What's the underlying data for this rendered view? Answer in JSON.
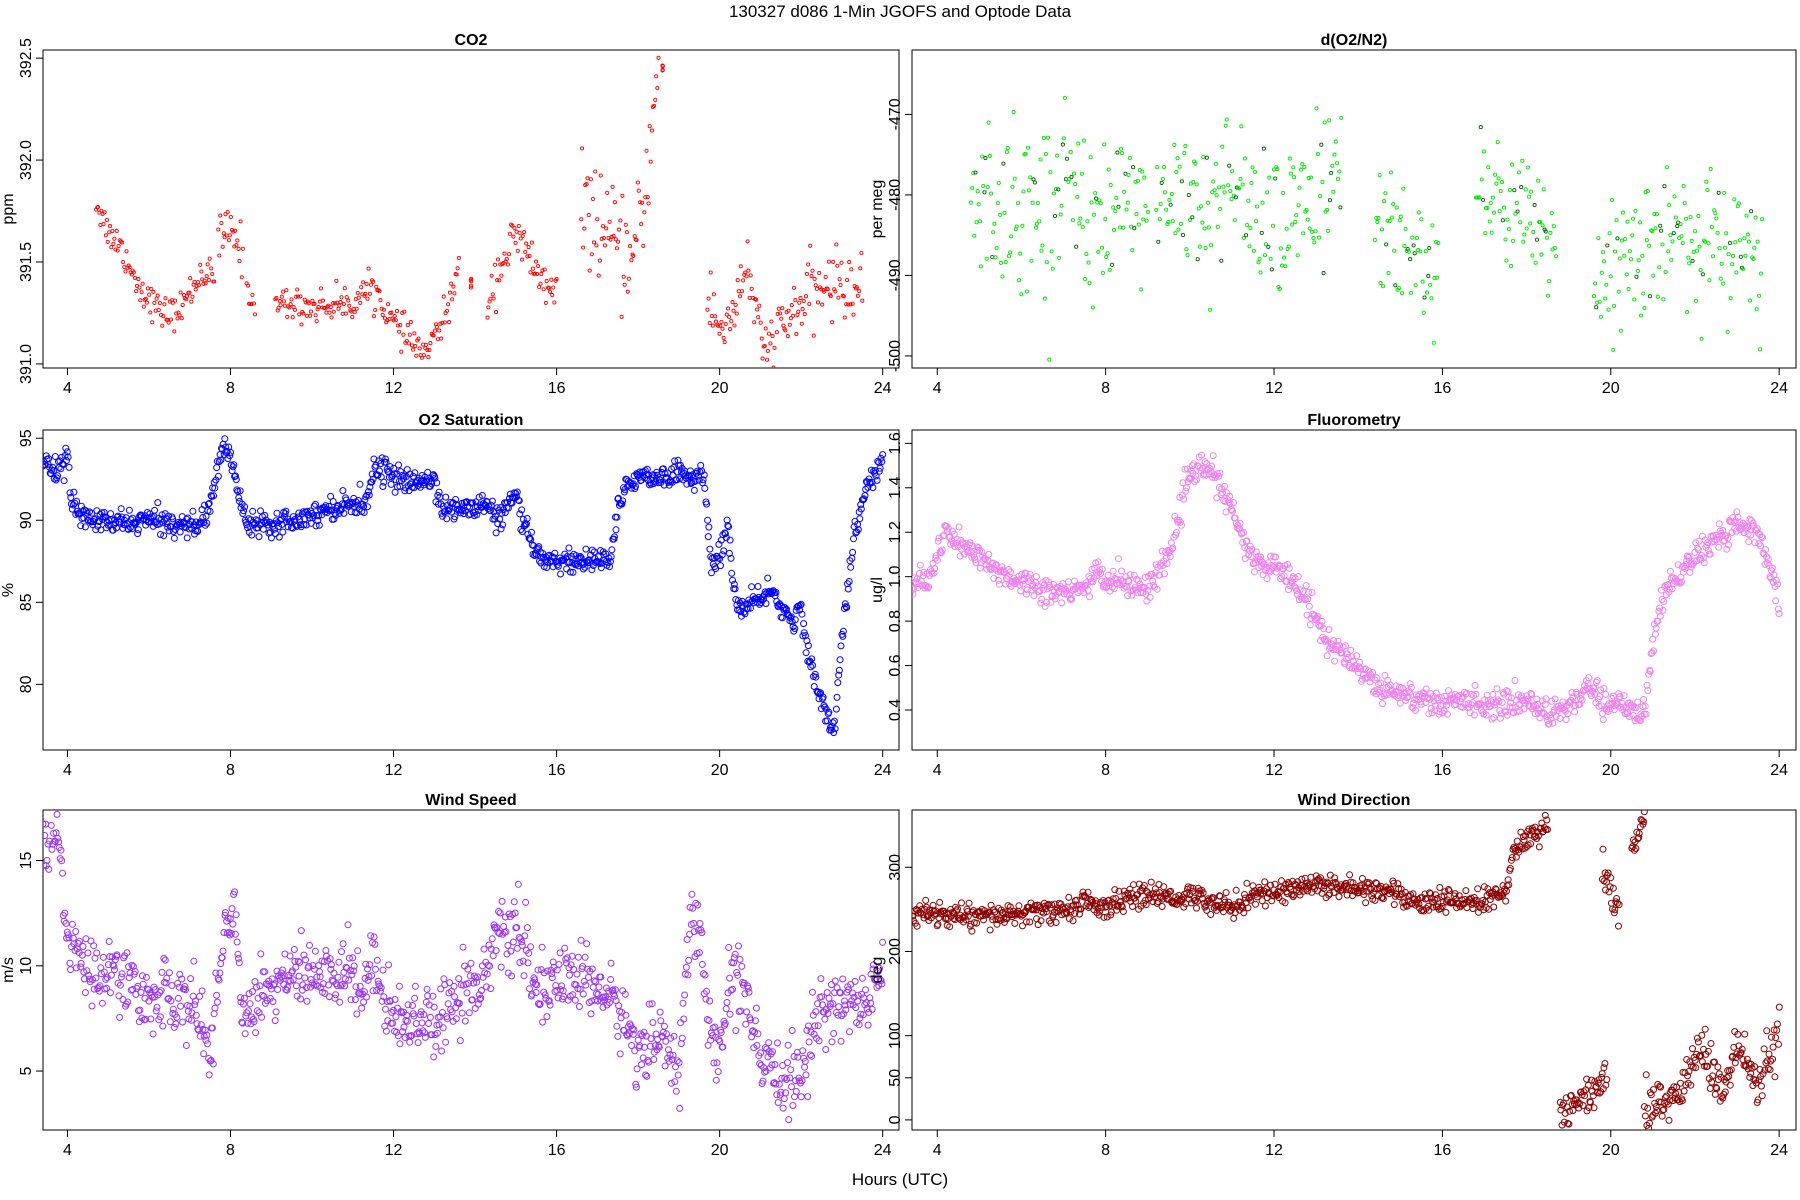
{
  "page": {
    "title": "130327   d086   1-Min  JGOFS and Optode Data",
    "xlabel": "Hours (UTC)"
  },
  "chart_data": [
    {
      "type": "scatter",
      "title": "CO2",
      "ylabel": "ppm",
      "color": "#ff0000",
      "marker": "small",
      "xlim": [
        3.4,
        24.4
      ],
      "ylim": [
        390.98,
        392.54
      ],
      "x_ticks": [
        4,
        8,
        12,
        16,
        20,
        24
      ],
      "y_ticks": [
        391.0,
        391.5,
        392.0,
        392.5
      ],
      "y_tick_labels": [
        "391.0",
        "391.5",
        "392.0",
        "392.5"
      ],
      "keypoints": [
        [
          4.7,
          391.8
        ],
        [
          5.0,
          391.65
        ],
        [
          5.3,
          391.58
        ],
        [
          5.7,
          391.4
        ],
        [
          6.0,
          391.32
        ],
        [
          6.3,
          391.25
        ],
        [
          6.7,
          391.25
        ],
        [
          7.0,
          391.35
        ],
        [
          7.3,
          391.45
        ],
        [
          7.6,
          391.42
        ],
        [
          7.8,
          391.6
        ],
        [
          8.0,
          391.7
        ],
        [
          8.3,
          391.6
        ]
      ],
      "segments": [
        {
          "x": [
            4.7,
            5.0,
            5.3,
            5.7,
            6.0,
            6.3,
            6.7,
            7.0,
            7.3,
            7.6
          ],
          "y": [
            391.8,
            391.65,
            391.58,
            391.4,
            391.32,
            391.25,
            391.25,
            391.35,
            391.45,
            391.42
          ],
          "noise": 0.04
        },
        {
          "x": [
            7.7,
            7.9,
            8.1,
            8.3
          ],
          "y": [
            391.6,
            391.65,
            391.62,
            391.55
          ],
          "noise": 0.06
        },
        {
          "x": [
            8.4,
            8.6
          ],
          "y": [
            391.35,
            391.3
          ],
          "noise": 0.03
        },
        {
          "x": [
            9.1,
            10.0,
            11.0,
            11.5,
            12.0,
            12.5,
            12.8,
            13.2,
            13.6
          ],
          "y": [
            391.3,
            391.28,
            391.3,
            391.38,
            391.2,
            391.1,
            391.05,
            391.2,
            391.45
          ],
          "noise": 0.04
        },
        {
          "x": [
            13.9
          ],
          "y": [
            391.4
          ],
          "noise": 0.02
        },
        {
          "x": [
            14.3,
            14.6,
            15.0,
            15.4,
            15.8,
            16.0
          ],
          "y": [
            391.3,
            391.48,
            391.62,
            391.5,
            391.35,
            391.32
          ],
          "noise": 0.06
        },
        {
          "x": [
            16.6,
            17.0,
            17.5,
            17.9,
            18.2,
            18.5
          ],
          "y": [
            391.8,
            391.7,
            391.55,
            391.5,
            391.9,
            392.45
          ],
          "noise": 0.12
        },
        {
          "x": [
            18.6
          ],
          "y": [
            392.45
          ],
          "noise": 0.02
        },
        {
          "x": [
            19.7,
            20.0,
            20.4,
            20.7,
            21.0,
            21.3,
            21.8,
            22.3,
            22.8,
            23.5
          ],
          "y": [
            391.35,
            391.15,
            391.3,
            391.5,
            391.08,
            391.1,
            391.25,
            391.35,
            391.4,
            391.35
          ],
          "noise": 0.08
        }
      ]
    },
    {
      "type": "scatter",
      "title": "d(O2/N2)",
      "ylabel": "per meg",
      "color": "#00e600",
      "color2": "#006400",
      "marker": "small",
      "xlim": [
        3.4,
        24.4
      ],
      "ylim": [
        -501.5,
        -462
      ],
      "x_ticks": [
        4,
        8,
        12,
        16,
        20,
        24
      ],
      "y_ticks": [
        -470,
        -480,
        -490,
        -500
      ],
      "y_tick_labels": [
        "-470",
        "-480",
        "-490",
        "-500"
      ],
      "segments": [
        {
          "x": [
            4.8,
            5.5,
            6.0,
            6.5,
            7.0,
            7.5,
            8.0,
            8.5,
            9.0
          ],
          "y": [
            -480,
            -481,
            -482,
            -481,
            -479,
            -482,
            -484,
            -482,
            -483
          ],
          "noise": 5
        },
        {
          "x": [
            9.2,
            10.0,
            11.0,
            12.0,
            12.5,
            13.0,
            13.6
          ],
          "y": [
            -481,
            -480,
            -480,
            -482,
            -482,
            -481,
            -478
          ],
          "noise": 5
        },
        {
          "x": [
            14.4,
            15.0,
            15.5,
            15.9
          ],
          "y": [
            -483,
            -486,
            -488,
            -490
          ],
          "noise": 4
        },
        {
          "x": [
            16.8,
            17.3,
            17.8,
            18.3,
            18.7
          ],
          "y": [
            -479,
            -482,
            -483,
            -485,
            -487
          ],
          "noise": 4
        },
        {
          "x": [
            19.6,
            20.0,
            20.5,
            21.0,
            21.5,
            22.0,
            22.5,
            23.0,
            23.6
          ],
          "y": [
            -490,
            -489,
            -487,
            -486,
            -485,
            -485,
            -486,
            -487,
            -488
          ],
          "noise": 4
        }
      ]
    },
    {
      "type": "scatter",
      "title": "O2 Saturation",
      "ylabel": "%",
      "color": "#0000ff",
      "marker": "circle",
      "xlim": [
        3.4,
        24.4
      ],
      "ylim": [
        76,
        95.5
      ],
      "x_ticks": [
        4,
        8,
        12,
        16,
        20,
        24
      ],
      "y_ticks": [
        80,
        85,
        90,
        95
      ],
      "y_tick_labels": [
        "80",
        "85",
        "90",
        "95"
      ],
      "segments": [
        {
          "x": [
            3.4,
            3.7,
            4.0,
            4.1,
            4.3,
            5.0,
            6.0,
            7.0,
            7.4,
            7.6,
            7.8,
            8.0,
            8.2,
            8.4,
            9.0,
            10.0,
            10.5,
            11.0,
            11.3,
            11.5,
            11.8,
            12.0,
            12.5,
            13.0,
            13.2,
            13.5,
            14.0,
            14.3,
            14.5,
            14.8,
            15.0,
            15.2,
            15.5,
            16.0,
            16.5,
            17.0,
            17.3,
            17.5,
            17.8,
            18.2,
            18.5,
            19.0,
            19.4,
            19.6,
            19.8,
            20.0,
            20.2,
            20.4,
            20.6,
            20.8,
            21.0,
            21.3,
            21.5,
            21.8,
            22.0,
            22.2,
            22.4,
            22.6,
            22.8,
            23.0,
            23.3,
            23.6,
            24.0
          ],
          "y": [
            93.5,
            93.0,
            94.0,
            91.0,
            90.3,
            89.8,
            90.0,
            89.7,
            90.0,
            92.0,
            94.5,
            94.0,
            91.5,
            90.0,
            89.8,
            90.3,
            90.8,
            91.0,
            91.0,
            93.0,
            93.2,
            92.5,
            92.3,
            92.5,
            90.8,
            90.6,
            90.8,
            91.0,
            90.0,
            90.8,
            91.5,
            89.5,
            88.0,
            87.5,
            87.5,
            87.6,
            87.5,
            90.5,
            92.5,
            92.8,
            92.5,
            93.0,
            92.5,
            93.0,
            87.0,
            88.0,
            89.5,
            85.0,
            84.5,
            85.0,
            85.0,
            86.0,
            84.5,
            84.0,
            84.5,
            81.5,
            79.5,
            78.5,
            77.0,
            83.0,
            89.0,
            92.0,
            93.5
          ],
          "noise": 0.35
        }
      ]
    },
    {
      "type": "scatter",
      "title": "Fluorometry",
      "ylabel": "ug/l",
      "color": "#ee82ee",
      "marker": "circle",
      "xlim": [
        3.4,
        24.4
      ],
      "ylim": [
        0.22,
        1.66
      ],
      "x_ticks": [
        4,
        8,
        12,
        16,
        20,
        24
      ],
      "y_ticks": [
        0.4,
        0.6,
        0.8,
        1.0,
        1.2,
        1.4,
        1.6
      ],
      "y_tick_labels": [
        "0.4",
        "0.6",
        "0.8",
        "1.0",
        "1.2",
        "1.4",
        "1.6"
      ],
      "segments": [
        {
          "x": [
            3.4,
            3.8,
            4.0,
            4.2,
            4.5,
            5.0,
            5.5,
            6.0,
            6.5,
            7.0,
            7.5,
            7.8,
            8.0,
            8.3,
            8.6,
            9.0,
            9.5,
            10.0,
            10.3,
            10.6,
            11.0,
            11.3,
            11.6,
            12.0,
            12.5,
            12.8,
            13.2,
            13.6,
            14.0,
            14.5,
            15.0,
            15.5,
            16.0,
            16.5,
            17.0,
            17.5,
            18.0,
            18.5,
            19.0,
            19.5,
            20.0,
            20.5,
            20.8,
            21.0,
            21.3,
            21.6,
            22.0,
            22.5,
            23.0,
            23.5,
            24.0
          ],
          "y": [
            0.97,
            0.98,
            1.1,
            1.2,
            1.15,
            1.08,
            1.02,
            0.98,
            0.95,
            0.92,
            0.94,
            1.05,
            0.96,
            1.0,
            0.95,
            0.95,
            1.1,
            1.45,
            1.5,
            1.45,
            1.3,
            1.15,
            1.05,
            1.05,
            0.98,
            0.9,
            0.72,
            0.65,
            0.6,
            0.5,
            0.48,
            0.45,
            0.42,
            0.45,
            0.43,
            0.42,
            0.45,
            0.38,
            0.42,
            0.5,
            0.42,
            0.42,
            0.38,
            0.7,
            0.95,
            1.0,
            1.1,
            1.15,
            1.25,
            1.2,
            0.9
          ],
          "noise": 0.03
        }
      ]
    },
    {
      "type": "scatter",
      "title": "Wind Speed",
      "ylabel": "m/s",
      "color": "#9932ee",
      "marker": "circle",
      "xlim": [
        3.4,
        24.4
      ],
      "ylim": [
        2.2,
        17.4
      ],
      "x_ticks": [
        4,
        8,
        12,
        16,
        20,
        24
      ],
      "y_ticks": [
        5,
        10,
        15
      ],
      "y_tick_labels": [
        "5",
        "10",
        "15"
      ],
      "segments": [
        {
          "x": [
            3.4,
            3.6,
            3.8,
            4.0,
            4.3,
            4.6,
            5.0,
            5.5,
            6.0,
            6.5,
            7.0,
            7.3,
            7.5,
            7.8,
            8.1,
            8.3,
            8.5,
            9.0,
            9.5,
            10.0,
            10.5,
            11.0,
            11.2,
            11.5,
            12.0,
            12.5,
            13.0,
            13.5,
            14.0,
            14.5,
            15.0,
            15.5,
            16.0,
            16.5,
            17.0,
            17.5,
            18.0,
            18.3,
            18.6,
            19.0,
            19.3,
            19.6,
            19.9,
            20.3,
            20.6,
            21.0,
            21.5,
            22.0,
            22.3,
            22.6,
            23.0,
            23.5,
            24.0
          ],
          "y": [
            15.5,
            16.5,
            15.5,
            11.0,
            10.5,
            9.5,
            10.0,
            9.0,
            8.5,
            8.5,
            8.5,
            7.0,
            5.5,
            11.5,
            12.5,
            7.5,
            8.5,
            9.0,
            9.5,
            9.5,
            9.5,
            10.0,
            8.5,
            10.5,
            7.5,
            7.5,
            7.5,
            8.5,
            9.0,
            11.0,
            11.8,
            9.0,
            9.0,
            9.5,
            9.0,
            8.0,
            6.0,
            6.0,
            7.0,
            5.0,
            12.5,
            10.0,
            5.0,
            9.5,
            9.0,
            5.0,
            4.7,
            4.7,
            7.0,
            8.0,
            8.5,
            8.0,
            9.5
          ],
          "noise": 0.8
        }
      ]
    },
    {
      "type": "scatter",
      "title": "Wind Direction",
      "ylabel": "deg",
      "color": "#8b0000",
      "marker": "circle",
      "xlim": [
        3.4,
        24.4
      ],
      "ylim": [
        -12,
        368
      ],
      "x_ticks": [
        4,
        8,
        12,
        16,
        20,
        24
      ],
      "y_ticks": [
        0,
        50,
        100,
        200,
        300
      ],
      "y_tick_labels": [
        "0",
        "50",
        "100",
        "200",
        "300"
      ],
      "segments": [
        {
          "x": [
            3.4,
            4.0,
            5.0,
            6.0,
            7.0,
            7.5,
            8.0,
            8.5,
            9.0,
            10.0,
            11.0,
            11.3,
            11.5,
            12.0,
            13.0,
            14.0,
            15.0,
            15.5,
            16.0,
            16.5,
            17.0,
            17.5,
            17.7,
            18.0,
            18.5
          ],
          "y": [
            245,
            245,
            240,
            245,
            248,
            260,
            250,
            265,
            265,
            265,
            255,
            260,
            268,
            270,
            280,
            275,
            270,
            255,
            260,
            258,
            260,
            270,
            320,
            335,
            345
          ],
          "noise": 7
        },
        {
          "x": [
            19.8,
            20.0,
            20.2
          ],
          "y": [
            295,
            270,
            245
          ],
          "noise": 12
        },
        {
          "x": [
            20.5,
            20.8
          ],
          "y": [
            330,
            355
          ],
          "noise": 8
        },
        {
          "x": [
            18.8,
            19.2,
            19.6,
            19.9
          ],
          "y": [
            5,
            20,
            35,
            55
          ],
          "noise": 10
        },
        {
          "x": [
            20.8,
            21.2,
            21.6,
            21.9,
            22.1,
            22.5,
            22.8,
            23.0,
            23.3,
            23.5,
            23.7,
            24.0
          ],
          "y": [
            10,
            20,
            30,
            60,
            90,
            45,
            40,
            95,
            50,
            30,
            70,
            105
          ],
          "noise": 14
        }
      ]
    }
  ]
}
